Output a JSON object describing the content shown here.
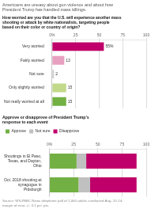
{
  "chart_data": [
    {
      "type": "bar",
      "orientation": "horizontal",
      "title": "Americans are uneasy about gun violence and about how\nPresident Trump has handled mass killings.",
      "subtitle": "How worried are you that the U.S. will experience another mass\nshooting or attack by white nationalists, targeting people\nbased on their color or country of origin?",
      "categories": [
        "Very worried",
        "Fairly worried",
        "Not sure",
        "Only slightly worried",
        "Not really worried at all"
      ],
      "values": [
        55,
        13,
        2,
        15,
        15
      ],
      "value_labels": [
        "55%",
        "13",
        "2",
        "15",
        "15"
      ],
      "data_labels": true,
      "colors": [
        "#c0006a",
        "#e8a0c0",
        "#cccccc",
        "#c2d98a",
        "#72b043"
      ],
      "xlim": [
        0,
        100
      ],
      "xticks": [
        {
          "value": 0,
          "label": "0%"
        },
        25,
        50,
        75,
        100
      ],
      "grid": true
    },
    {
      "type": "bar",
      "orientation": "horizontal",
      "stacked": true,
      "title": "Approve or disapprove of President Trump’s\nresponse to each event",
      "annotations": [
        "Source: WSJ/NBC News telephone poll of 1,000 adults conducted Aug. 10-14;\nmargin of error +/- 3.1 pct. pts."
      ],
      "categories": [
        "Shootings in El Paso,\nTexas, and Dayton,\nOhio",
        "Oct. 2018 shooting at\nsynagogue in\nPittsburgh"
      ],
      "series": [
        {
          "name": "Approve",
          "color": "#72b043",
          "values": [
            28,
            30
          ]
        },
        {
          "name": "Not sure",
          "color": "#c0c0c0",
          "values": [
            10,
            12
          ]
        },
        {
          "name": "Disapprove",
          "color": "#c0006a",
          "values": [
            52,
            48
          ]
        }
      ],
      "legend": "top",
      "xlim": [
        0,
        100
      ],
      "xticks": [
        {
          "value": 0,
          "label": "0%"
        },
        25,
        50,
        75,
        100
      ],
      "grid": true
    }
  ]
}
